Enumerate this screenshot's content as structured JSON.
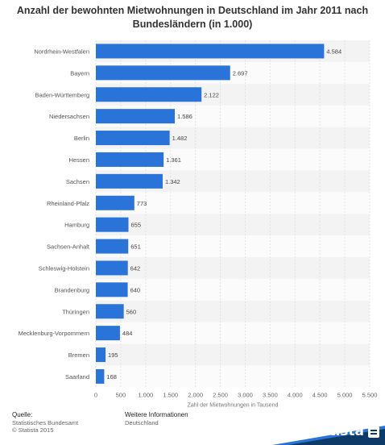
{
  "chart_data": {
    "type": "bar",
    "orientation": "horizontal",
    "title_line1": "Anzahl der bewohnten Mietwohnungen in Deutschland im Jahr 2011 nach",
    "title_line2": "Bundesländern (in 1.000)",
    "xlabel": "Zahl der Mietwohnungen in Tausend",
    "xlim": [
      0,
      5500
    ],
    "xticks": [
      {
        "value": 0,
        "label": "0"
      },
      {
        "value": 500,
        "label": "500"
      },
      {
        "value": 1000,
        "label": "1.000"
      },
      {
        "value": 1500,
        "label": "1.500"
      },
      {
        "value": 2000,
        "label": "2.000"
      },
      {
        "value": 2500,
        "label": "2.500"
      },
      {
        "value": 3000,
        "label": "3.000"
      },
      {
        "value": 3500,
        "label": "3.500"
      },
      {
        "value": 4000,
        "label": "4.000"
      },
      {
        "value": 4500,
        "label": "4.500"
      },
      {
        "value": 5000,
        "label": "5.000"
      },
      {
        "value": 5500,
        "label": "5.500"
      }
    ],
    "categories": [
      "Nordrhein-Westfalen",
      "Bayern",
      "Baden-Württemberg",
      "Niedersachsen",
      "Berlin",
      "Hessen",
      "Sachsen",
      "Rheinland-Pfalz",
      "Hamburg",
      "Sachsen-Anhalt",
      "Schleswig-Holstein",
      "Brandenburg",
      "Thüringen",
      "Mecklenburg-Vorpommern",
      "Bremen",
      "Saarland"
    ],
    "values": [
      4584,
      2697,
      2122,
      1586,
      1482,
      1361,
      1342,
      773,
      655,
      651,
      642,
      640,
      560,
      484,
      195,
      168
    ],
    "value_labels": [
      "4.584",
      "2.697",
      "2.122",
      "1.586",
      "1.482",
      "1.361",
      "1.342",
      "773",
      "655",
      "651",
      "642",
      "640",
      "560",
      "484",
      "195",
      "168"
    ],
    "bar_color": "#2a73d9",
    "grid": true
  },
  "footer": {
    "source_head": "Quelle:",
    "source_line1": "Statistisches Bundesamt",
    "source_line2": "© Statista 2015",
    "more_head": "Weitere Informationen",
    "more_line1": "Deutschland"
  },
  "brand": {
    "name": "statista",
    "band_color": "#0d3a67",
    "accent_color": "#2a73d9"
  }
}
